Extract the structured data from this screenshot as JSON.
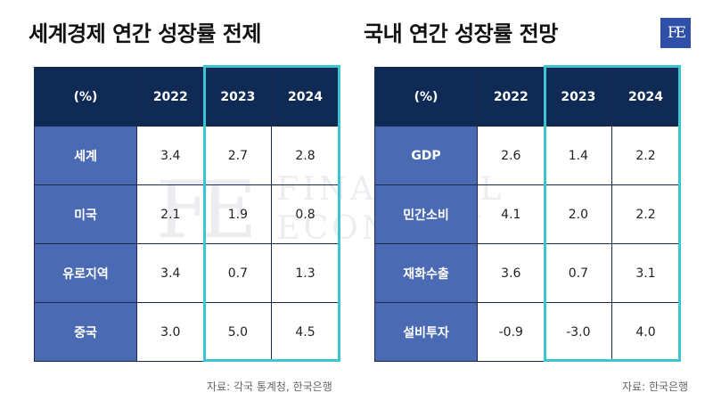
{
  "logo": {
    "text": "FE"
  },
  "watermark": {
    "mark": "FE",
    "line1": "FINANCIAL",
    "line2": "ECONOMY"
  },
  "accent": "#3cc6d2",
  "header_color": "#102a56",
  "row_label_color": "#4a6ab4",
  "chart_data": [
    {
      "type": "table",
      "title": "세계경제 연간 성장률 전제",
      "header": {
        "label": "(%)",
        "years": [
          "2022",
          "2023",
          "2024"
        ]
      },
      "highlighted_years": [
        "2023",
        "2024"
      ],
      "rows": [
        {
          "label": "세계",
          "values": [
            "3.4",
            "2.7",
            "2.8"
          ]
        },
        {
          "label": "미국",
          "values": [
            "2.1",
            "1.9",
            "0.8"
          ]
        },
        {
          "label": "유로지역",
          "values": [
            "3.4",
            "0.7",
            "1.3"
          ]
        },
        {
          "label": "중국",
          "values": [
            "3.0",
            "5.0",
            "4.5"
          ]
        }
      ],
      "source": "자료: 각국 통계청, 한국은행"
    },
    {
      "type": "table",
      "title": "국내 연간 성장률 전망",
      "header": {
        "label": "(%)",
        "years": [
          "2022",
          "2023",
          "2024"
        ]
      },
      "highlighted_years": [
        "2023",
        "2024"
      ],
      "rows": [
        {
          "label": "GDP",
          "values": [
            "2.6",
            "1.4",
            "2.2"
          ]
        },
        {
          "label": "민간소비",
          "values": [
            "4.1",
            "2.0",
            "2.2"
          ]
        },
        {
          "label": "재화수출",
          "values": [
            "3.6",
            "0.7",
            "3.1"
          ]
        },
        {
          "label": "설비투자",
          "values": [
            "-0.9",
            "-3.0",
            "4.0"
          ]
        }
      ],
      "source": "자료: 한국은행"
    }
  ]
}
